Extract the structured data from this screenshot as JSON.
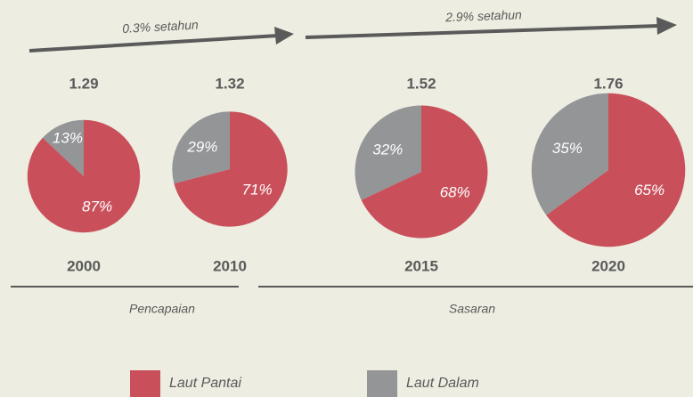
{
  "chart_data": [
    {
      "type": "pie",
      "title": "2000",
      "total": 1.29,
      "categories": [
        "Laut Pantai",
        "Laut Dalam"
      ],
      "values": [
        87,
        13
      ],
      "value_labels": [
        "87%",
        "13%"
      ],
      "colors": [
        "#c9505a",
        "#939597"
      ]
    },
    {
      "type": "pie",
      "title": "2010",
      "total": 1.32,
      "categories": [
        "Laut Pantai",
        "Laut Dalam"
      ],
      "values": [
        71,
        29
      ],
      "value_labels": [
        "71%",
        "29%"
      ],
      "colors": [
        "#c9505a",
        "#939597"
      ]
    },
    {
      "type": "pie",
      "title": "2015",
      "total": 1.52,
      "categories": [
        "Laut Pantai",
        "Laut Dalam"
      ],
      "values": [
        68,
        32
      ],
      "value_labels": [
        "68%",
        "32%"
      ],
      "colors": [
        "#c9505a",
        "#939597"
      ]
    },
    {
      "type": "pie",
      "title": "2020",
      "total": 1.76,
      "categories": [
        "Laut Pantai",
        "Laut Dalam"
      ],
      "values": [
        65,
        35
      ],
      "value_labels": [
        "65%",
        "35%"
      ],
      "colors": [
        "#c9505a",
        "#939597"
      ]
    }
  ],
  "annotations": [
    "0.3% setahun",
    "2.9% setahun"
  ],
  "periods": [
    "Pencapaian",
    "Sasaran"
  ]
}
